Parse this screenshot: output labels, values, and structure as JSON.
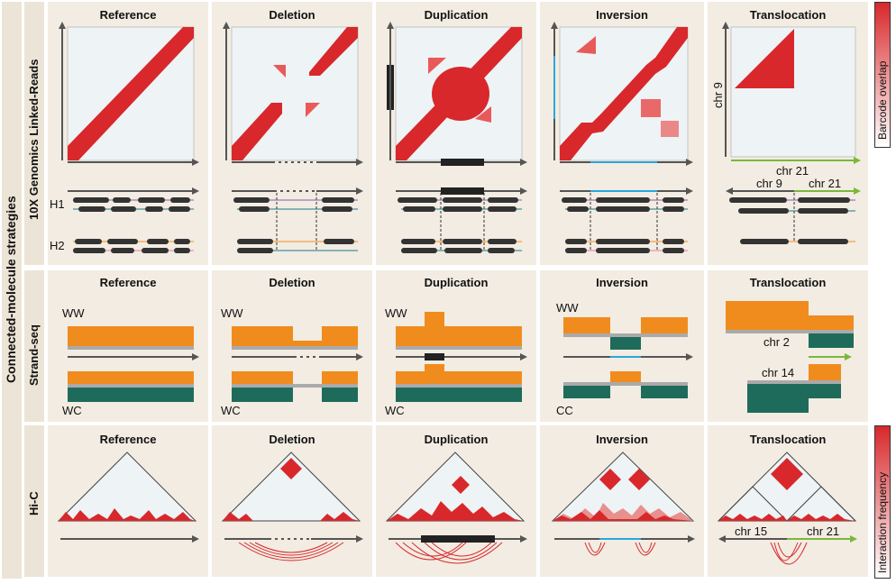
{
  "strategies_label": "Connected-molecule strategies",
  "rows": [
    {
      "label": "10X Genomics Linked-Reads"
    },
    {
      "label": "Strand-seq"
    },
    {
      "label": "Hi-C"
    }
  ],
  "titles": [
    "Reference",
    "Deletion",
    "Duplication",
    "Inversion",
    "Translocation"
  ],
  "tenx": {
    "haplotype_labels": [
      "H1",
      "H2"
    ],
    "translocation": {
      "y_chr": "chr 9",
      "x_chr": "chr 21",
      "read_left": "chr 9",
      "read_right": "chr 21"
    }
  },
  "strandseq": {
    "ww": "WW",
    "wc": "WC",
    "cc": "CC",
    "translocation_top": "chr 2",
    "translocation_bottom": "chr 14"
  },
  "hic": {
    "translocation_left": "chr 15",
    "translocation_right": "chr 21"
  },
  "legends": {
    "barcode": "Barcode overlap",
    "interaction": "Interaction frequency"
  },
  "colors": {
    "red": "#d8282b",
    "orange": "#f08c1e",
    "teal": "#1f6b5b",
    "blue": "#2aa6df",
    "green": "#7ab83a",
    "panel": "#f2ece2"
  }
}
